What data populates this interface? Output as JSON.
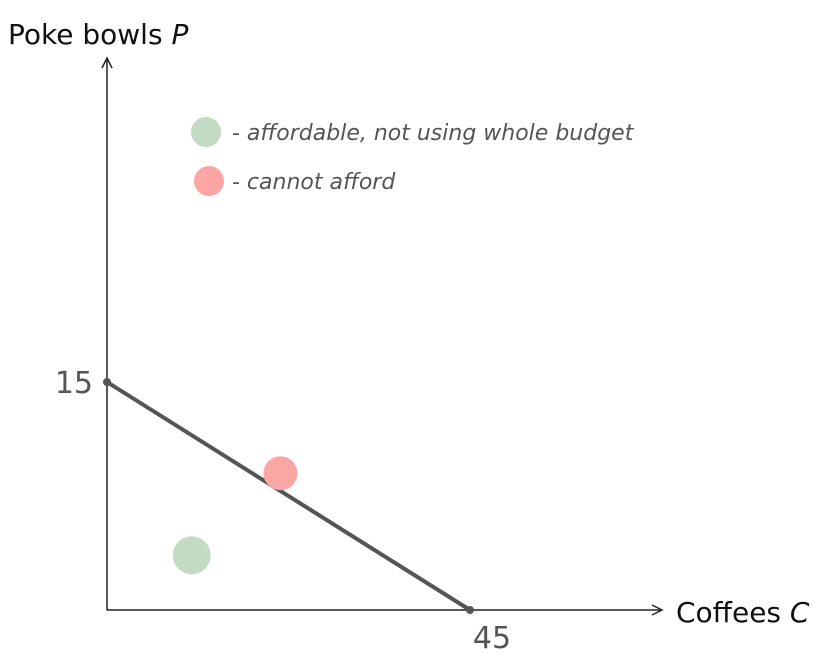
{
  "chart_data": {
    "type": "line",
    "xlabel": "Coffees",
    "xvar": "C",
    "ylabel": "Poke bowls",
    "yvar": "P",
    "x_intercept": 45,
    "y_intercept": 15,
    "x_tick_label": "45",
    "y_tick_label": "15",
    "budget_line": {
      "x": [
        0,
        45
      ],
      "y": [
        15,
        0
      ]
    },
    "xlim": [
      0,
      69
    ],
    "ylim": [
      0,
      38
    ],
    "grid": false,
    "legend_position": "top-left",
    "series": [
      {
        "label": "- affordable, not using whole budget",
        "color": "#c3dbc3",
        "points": [
          {
            "x": 10.5,
            "y": 3.6
          }
        ]
      },
      {
        "label": "- cannot afford",
        "color": "#fca5a5",
        "points": [
          {
            "x": 21.5,
            "y": 9.0
          }
        ]
      }
    ]
  }
}
